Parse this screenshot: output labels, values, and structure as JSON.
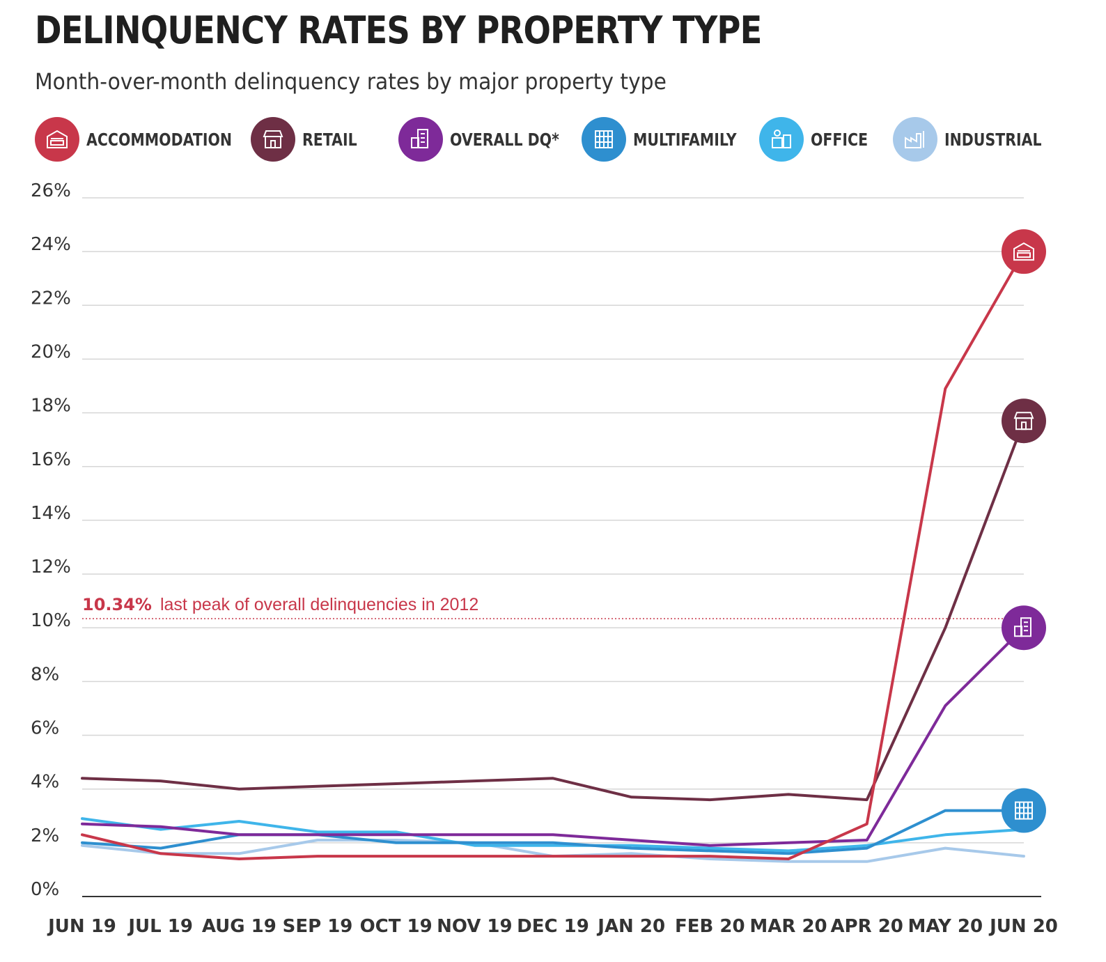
{
  "header": {
    "title": "DELINQUENCY RATES BY PROPERTY TYPE",
    "subtitle": "Month-over-month delinquency rates by major property type"
  },
  "legend": [
    {
      "label": "ACCOMMODATION",
      "color": "#c8374a",
      "icon": "hotel-bed-icon"
    },
    {
      "label": "RETAIL",
      "color": "#6e2f45",
      "icon": "storefront-icon"
    },
    {
      "label": "OVERALL DQ*",
      "color": "#7e2a99",
      "icon": "city-buildings-icon"
    },
    {
      "label": "MULTIFAMILY",
      "color": "#2e8fcf",
      "icon": "apartment-building-icon"
    },
    {
      "label": "OFFICE",
      "color": "#3fb5ea",
      "icon": "office-desk-icon"
    },
    {
      "label": "INDUSTRIAL",
      "color": "#a7c9ea",
      "icon": "factory-icon"
    }
  ],
  "chart_data": {
    "type": "line",
    "title": "DELINQUENCY RATES BY PROPERTY TYPE",
    "subtitle": "Month-over-month delinquency rates by major property type",
    "categories": [
      "JUN 19",
      "JUL 19",
      "AUG 19",
      "SEP 19",
      "OCT 19",
      "NOV 19",
      "DEC 19",
      "JAN 20",
      "FEB 20",
      "MAR 20",
      "APR 20",
      "MAY 20",
      "JUN 20"
    ],
    "yticks": [
      "0%",
      "2%",
      "4%",
      "6%",
      "8%",
      "10%",
      "12%",
      "14%",
      "16%",
      "18%",
      "20%",
      "22%",
      "24%",
      "26%"
    ],
    "ylim": [
      0,
      26
    ],
    "grid": true,
    "legend_position": "top",
    "series": [
      {
        "name": "ACCOMMODATION",
        "color": "#c8374a",
        "values": [
          2.3,
          1.6,
          1.4,
          1.5,
          1.5,
          1.5,
          1.5,
          1.5,
          1.5,
          1.4,
          2.7,
          18.9,
          24.0
        ]
      },
      {
        "name": "RETAIL",
        "color": "#6e2f45",
        "values": [
          4.4,
          4.3,
          4.0,
          4.1,
          4.2,
          4.3,
          4.4,
          3.7,
          3.6,
          3.8,
          3.6,
          10.0,
          17.7
        ]
      },
      {
        "name": "OVERALL DQ*",
        "color": "#7e2a99",
        "values": [
          2.7,
          2.6,
          2.3,
          2.3,
          2.3,
          2.3,
          2.3,
          2.1,
          1.9,
          2.0,
          2.1,
          7.1,
          10.0
        ]
      },
      {
        "name": "MULTIFAMILY",
        "color": "#2e8fcf",
        "values": [
          2.0,
          1.8,
          2.3,
          2.3,
          2.0,
          2.0,
          2.0,
          1.8,
          1.7,
          1.6,
          1.8,
          3.2,
          3.2
        ]
      },
      {
        "name": "OFFICE",
        "color": "#3fb5ea",
        "values": [
          2.9,
          2.5,
          2.8,
          2.4,
          2.4,
          1.9,
          1.9,
          1.9,
          1.8,
          1.7,
          1.9,
          2.3,
          2.5
        ]
      },
      {
        "name": "INDUSTRIAL",
        "color": "#a7c9ea",
        "values": [
          1.9,
          1.6,
          1.6,
          2.1,
          2.1,
          2.0,
          1.5,
          1.6,
          1.4,
          1.3,
          1.3,
          1.8,
          1.5
        ]
      }
    ],
    "end_markers": [
      {
        "series": "ACCOMMODATION",
        "icon": "hotel-bed-icon"
      },
      {
        "series": "RETAIL",
        "icon": "storefront-icon"
      },
      {
        "series": "OVERALL DQ*",
        "icon": "city-buildings-icon"
      },
      {
        "series": "MULTIFAMILY",
        "icon": "apartment-building-icon"
      }
    ],
    "reference_line": {
      "value": 10.34,
      "label_value": "10.34%",
      "label_text": "last peak of overall delinquencies in 2012",
      "color": "#c8374a"
    }
  }
}
